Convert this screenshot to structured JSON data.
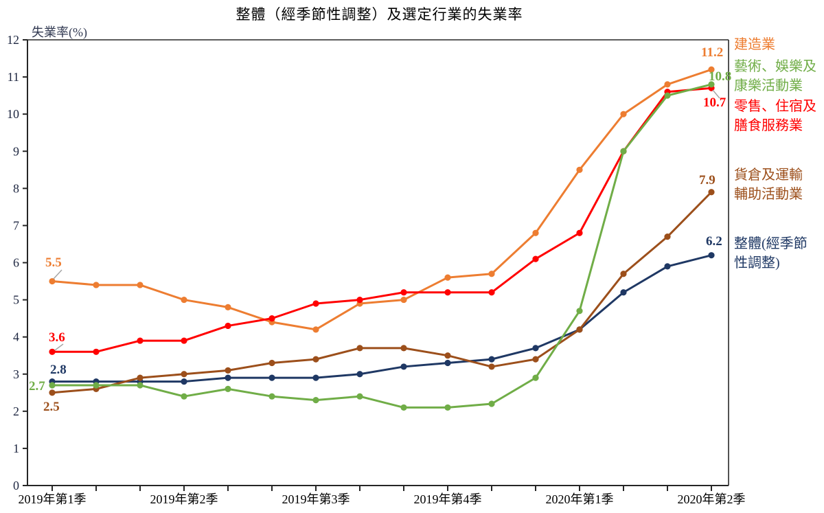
{
  "title": "整體（經季節性調整）及選定行業的失業率",
  "y_axis": {
    "label": "失業率(%)",
    "min": 0,
    "max": 12,
    "tick_labels": [
      "0",
      "1",
      "2",
      "3",
      "4",
      "5",
      "6",
      "7",
      "8",
      "9",
      "10",
      "11",
      "12"
    ]
  },
  "x_axis": {
    "tick_labels": [
      "2019年第1季",
      "2019年第2季",
      "2019年第3季",
      "2019年第4季",
      "2020年第1季",
      "2020年第2季"
    ],
    "labeled_point_indices": [
      0,
      3,
      6,
      9,
      12,
      15
    ],
    "points_per_series": 16
  },
  "chart_data": {
    "type": "line",
    "title": "整體（經季節性調整）及選定行業的失業率",
    "xlabel": "",
    "ylabel": "失業率(%)",
    "ylim": [
      0,
      12
    ],
    "grid": false,
    "legend_position": "right-outside",
    "x_tick_labels": [
      "2019年第1季",
      "2019年第2季",
      "2019年第3季",
      "2019年第4季",
      "2020年第1季",
      "2020年第2季"
    ],
    "series": [
      {
        "id": "construction",
        "name": "建造業",
        "color": "#ED7D31",
        "values": [
          5.5,
          5.4,
          5.4,
          5.0,
          4.8,
          4.4,
          4.2,
          4.9,
          5.0,
          5.6,
          5.7,
          6.8,
          8.5,
          10.0,
          10.8,
          11.2
        ],
        "start_label": "5.5",
        "end_label": "11.2"
      },
      {
        "id": "retail-accommodation-food",
        "name": "零售、住宿及膳食服務業",
        "color": "#FF0000",
        "values": [
          3.6,
          3.6,
          3.9,
          3.9,
          4.3,
          4.5,
          4.9,
          5.0,
          5.2,
          5.2,
          5.2,
          6.1,
          6.8,
          9.0,
          10.6,
          10.7
        ],
        "start_label": "3.6",
        "end_label": "10.7"
      },
      {
        "id": "overall-seasonally-adjusted",
        "name": "整體(經季節性調整)",
        "color": "#1F3864",
        "values": [
          2.8,
          2.8,
          2.8,
          2.8,
          2.9,
          2.9,
          2.9,
          3.0,
          3.2,
          3.3,
          3.4,
          3.7,
          4.2,
          5.2,
          5.9,
          6.2
        ],
        "start_label": "2.8",
        "end_label": "6.2"
      },
      {
        "id": "warehousing-transport-support",
        "name": "貨倉及運輸輔助活動業",
        "color": "#9C4F1B",
        "values": [
          2.5,
          2.6,
          2.9,
          3.0,
          3.1,
          3.3,
          3.4,
          3.7,
          3.7,
          3.5,
          3.2,
          3.4,
          4.2,
          5.7,
          6.7,
          7.9
        ],
        "start_label": "2.5",
        "end_label": "7.9"
      },
      {
        "id": "arts-entertainment-recreation",
        "name": "藝術、娛樂及康樂活動業",
        "color": "#70AD47",
        "values": [
          2.7,
          2.7,
          2.7,
          2.4,
          2.6,
          2.4,
          2.3,
          2.4,
          2.1,
          2.1,
          2.2,
          2.9,
          4.7,
          9.0,
          10.5,
          10.8
        ],
        "start_label": "2.7",
        "end_label": "10.8"
      }
    ]
  },
  "legend": [
    {
      "id": "construction",
      "color": "#ED7D31",
      "lines": [
        "建造業"
      ]
    },
    {
      "id": "arts-entertainment-recreation",
      "color": "#70AD47",
      "lines": [
        "藝術、娛樂及",
        "康樂活動業"
      ]
    },
    {
      "id": "retail-accommodation-food",
      "color": "#FF0000",
      "lines": [
        "零售、住宿及",
        "膳食服務業"
      ]
    },
    {
      "id": "warehousing-transport-support",
      "color": "#9C4F1B",
      "lines": [
        "貨倉及運輸",
        "輔助活動業"
      ]
    },
    {
      "id": "overall-seasonally-adjusted",
      "color": "#1F3864",
      "lines": [
        "整體(經季節",
        "性調整)"
      ]
    }
  ]
}
